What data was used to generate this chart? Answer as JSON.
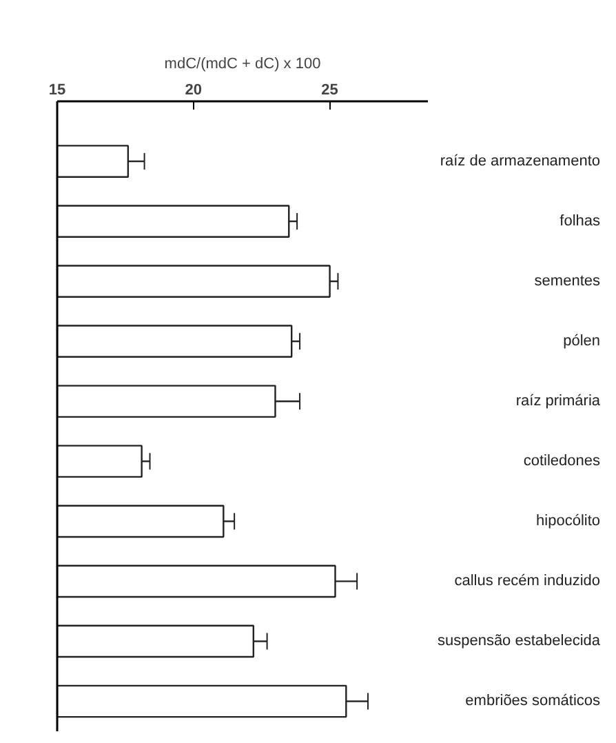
{
  "chart_data": {
    "type": "bar",
    "orientation": "horizontal",
    "xlabel": "mdC/(mdC + dC) x 100",
    "categories": [
      "raíz de armazenamento",
      "folhas",
      "sementes",
      "pólen",
      "raíz primária",
      "cotiledones",
      "hipocólito",
      "callus recém induzido",
      "suspensão estabelecida",
      "embriões somáticos"
    ],
    "values": [
      17.6,
      23.5,
      25.0,
      23.6,
      23.0,
      18.1,
      21.1,
      25.2,
      22.2,
      25.6
    ],
    "errors": [
      [
        17.6,
        18.2
      ],
      [
        23.5,
        23.8
      ],
      [
        25.0,
        25.3
      ],
      [
        23.6,
        23.9
      ],
      [
        23.0,
        23.9
      ],
      [
        18.1,
        18.4
      ],
      [
        21.1,
        21.5
      ],
      [
        25.2,
        26.0
      ],
      [
        22.2,
        22.7
      ],
      [
        25.6,
        26.4
      ]
    ],
    "color": "#ffffff",
    "xlim": [
      15,
      28.6
    ],
    "xticks": [
      15,
      20,
      25
    ],
    "grid": false
  }
}
